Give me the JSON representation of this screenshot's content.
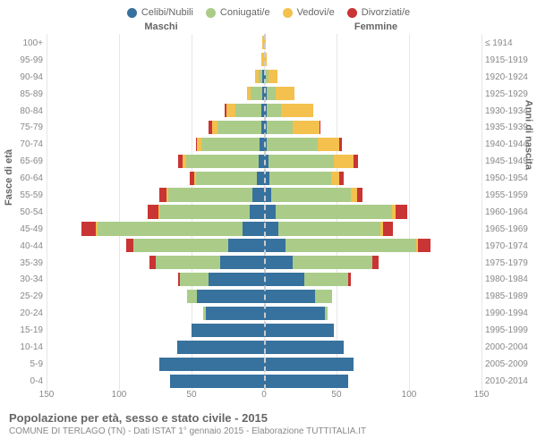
{
  "legend": {
    "items": [
      {
        "label": "Celibi/Nubili",
        "color": "#37719e"
      },
      {
        "label": "Coniugati/e",
        "color": "#aacc88"
      },
      {
        "label": "Vedovi/e",
        "color": "#f4c04e"
      },
      {
        "label": "Divorziati/e",
        "color": "#c93434"
      }
    ]
  },
  "top_labels": {
    "male": "Maschi",
    "female": "Femmine"
  },
  "axis_titles": {
    "left": "Fasce di età",
    "right": "Anni di nascita"
  },
  "x_axis": {
    "max": 150,
    "ticks": [
      150,
      100,
      50,
      0,
      50,
      100,
      150
    ]
  },
  "caption": {
    "title": "Popolazione per età, sesso e stato civile - 2015",
    "sub": "COMUNE DI TERLAGO (TN) - Dati ISTAT 1° gennaio 2015 - Elaborazione TUTTITALIA.IT"
  },
  "colors": {
    "single": "#37719e",
    "married": "#aacc88",
    "widowed": "#f4c04e",
    "divorced": "#c93434",
    "grid": "#e6e6e6",
    "center": "#cccccc",
    "bg": "#ffffff"
  },
  "rows": [
    {
      "age": "100+",
      "birth": "≤ 1914",
      "m": {
        "s": 0,
        "c": 0,
        "w": 1,
        "d": 0
      },
      "f": {
        "s": 0,
        "c": 0,
        "w": 1,
        "d": 0
      }
    },
    {
      "age": "95-99",
      "birth": "1915-1919",
      "m": {
        "s": 0,
        "c": 0,
        "w": 2,
        "d": 0
      },
      "f": {
        "s": 0,
        "c": 0,
        "w": 2,
        "d": 0
      }
    },
    {
      "age": "90-94",
      "birth": "1920-1924",
      "m": {
        "s": 1,
        "c": 3,
        "w": 2,
        "d": 0
      },
      "f": {
        "s": 1,
        "c": 2,
        "w": 6,
        "d": 0
      }
    },
    {
      "age": "85-89",
      "birth": "1925-1929",
      "m": {
        "s": 1,
        "c": 8,
        "w": 3,
        "d": 0
      },
      "f": {
        "s": 2,
        "c": 6,
        "w": 13,
        "d": 0
      }
    },
    {
      "age": "80-84",
      "birth": "1930-1934",
      "m": {
        "s": 2,
        "c": 18,
        "w": 6,
        "d": 1
      },
      "f": {
        "s": 2,
        "c": 10,
        "w": 22,
        "d": 0
      }
    },
    {
      "age": "75-79",
      "birth": "1935-1939",
      "m": {
        "s": 2,
        "c": 30,
        "w": 4,
        "d": 2
      },
      "f": {
        "s": 2,
        "c": 18,
        "w": 18,
        "d": 1
      }
    },
    {
      "age": "70-74",
      "birth": "1940-1944",
      "m": {
        "s": 3,
        "c": 40,
        "w": 3,
        "d": 1
      },
      "f": {
        "s": 2,
        "c": 35,
        "w": 15,
        "d": 2
      }
    },
    {
      "age": "65-69",
      "birth": "1945-1949",
      "m": {
        "s": 4,
        "c": 50,
        "w": 2,
        "d": 3
      },
      "f": {
        "s": 3,
        "c": 45,
        "w": 14,
        "d": 3
      }
    },
    {
      "age": "60-64",
      "birth": "1950-1954",
      "m": {
        "s": 5,
        "c": 42,
        "w": 1,
        "d": 3
      },
      "f": {
        "s": 4,
        "c": 42,
        "w": 6,
        "d": 3
      }
    },
    {
      "age": "55-59",
      "birth": "1955-1959",
      "m": {
        "s": 8,
        "c": 58,
        "w": 1,
        "d": 5
      },
      "f": {
        "s": 5,
        "c": 55,
        "w": 4,
        "d": 4
      }
    },
    {
      "age": "50-54",
      "birth": "1960-1964",
      "m": {
        "s": 10,
        "c": 62,
        "w": 1,
        "d": 7
      },
      "f": {
        "s": 8,
        "c": 80,
        "w": 3,
        "d": 8
      }
    },
    {
      "age": "45-49",
      "birth": "1965-1969",
      "m": {
        "s": 15,
        "c": 100,
        "w": 1,
        "d": 10
      },
      "f": {
        "s": 10,
        "c": 70,
        "w": 2,
        "d": 7
      }
    },
    {
      "age": "40-44",
      "birth": "1970-1974",
      "m": {
        "s": 25,
        "c": 65,
        "w": 0,
        "d": 5
      },
      "f": {
        "s": 15,
        "c": 90,
        "w": 1,
        "d": 9
      }
    },
    {
      "age": "35-39",
      "birth": "1975-1979",
      "m": {
        "s": 30,
        "c": 45,
        "w": 0,
        "d": 4
      },
      "f": {
        "s": 20,
        "c": 55,
        "w": 0,
        "d": 4
      }
    },
    {
      "age": "30-34",
      "birth": "1980-1984",
      "m": {
        "s": 38,
        "c": 20,
        "w": 0,
        "d": 1
      },
      "f": {
        "s": 28,
        "c": 30,
        "w": 0,
        "d": 2
      }
    },
    {
      "age": "25-29",
      "birth": "1985-1989",
      "m": {
        "s": 46,
        "c": 7,
        "w": 0,
        "d": 0
      },
      "f": {
        "s": 35,
        "c": 12,
        "w": 0,
        "d": 0
      }
    },
    {
      "age": "20-24",
      "birth": "1990-1994",
      "m": {
        "s": 40,
        "c": 2,
        "w": 0,
        "d": 0
      },
      "f": {
        "s": 42,
        "c": 2,
        "w": 0,
        "d": 0
      }
    },
    {
      "age": "15-19",
      "birth": "1995-1999",
      "m": {
        "s": 50,
        "c": 0,
        "w": 0,
        "d": 0
      },
      "f": {
        "s": 48,
        "c": 0,
        "w": 0,
        "d": 0
      }
    },
    {
      "age": "10-14",
      "birth": "2000-2004",
      "m": {
        "s": 60,
        "c": 0,
        "w": 0,
        "d": 0
      },
      "f": {
        "s": 55,
        "c": 0,
        "w": 0,
        "d": 0
      }
    },
    {
      "age": "5-9",
      "birth": "2005-2009",
      "m": {
        "s": 72,
        "c": 0,
        "w": 0,
        "d": 0
      },
      "f": {
        "s": 62,
        "c": 0,
        "w": 0,
        "d": 0
      }
    },
    {
      "age": "0-4",
      "birth": "2010-2014",
      "m": {
        "s": 65,
        "c": 0,
        "w": 0,
        "d": 0
      },
      "f": {
        "s": 58,
        "c": 0,
        "w": 0,
        "d": 0
      }
    }
  ]
}
